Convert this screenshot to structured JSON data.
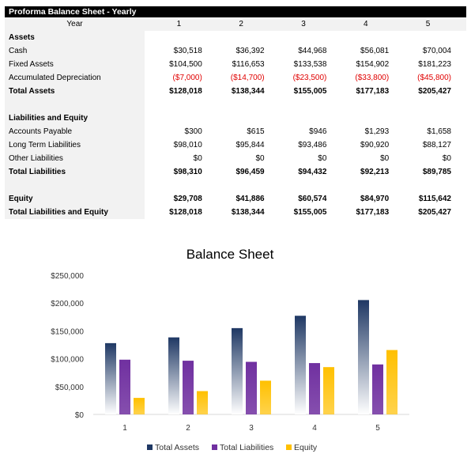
{
  "sheet": {
    "title": "Proforma Balance Sheet - Yearly",
    "header": {
      "label": "Year",
      "years": [
        "1",
        "2",
        "3",
        "4",
        "5"
      ]
    },
    "rows": [
      {
        "label": "Assets",
        "values": [],
        "bold": true
      },
      {
        "label": "Cash",
        "values": [
          "$30,518",
          "$36,392",
          "$44,968",
          "$56,081",
          "$70,004"
        ]
      },
      {
        "label": "Fixed Assets",
        "values": [
          "$104,500",
          "$116,653",
          "$133,538",
          "$154,902",
          "$181,223"
        ]
      },
      {
        "label": "Accumulated Depreciation",
        "values": [
          "($7,000)",
          "($14,700)",
          "($23,500)",
          "($33,800)",
          "($45,800)"
        ],
        "negative": true
      },
      {
        "label": "Total Assets",
        "values": [
          "$128,018",
          "$138,344",
          "$155,005",
          "$177,183",
          "$205,427"
        ],
        "bold": true
      },
      {
        "label": "",
        "values": []
      },
      {
        "label": "Liabilities and Equity",
        "values": [],
        "bold": true
      },
      {
        "label": "Accounts Payable",
        "values": [
          "$300",
          "$615",
          "$946",
          "$1,293",
          "$1,658"
        ]
      },
      {
        "label": "Long Term Liabilities",
        "values": [
          "$98,010",
          "$95,844",
          "$93,486",
          "$90,920",
          "$88,127"
        ]
      },
      {
        "label": "Other Liabilities",
        "values": [
          "$0",
          "$0",
          "$0",
          "$0",
          "$0"
        ]
      },
      {
        "label": "Total Liabilities",
        "values": [
          "$98,310",
          "$96,459",
          "$94,432",
          "$92,213",
          "$89,785"
        ],
        "bold": true
      },
      {
        "label": "",
        "values": []
      },
      {
        "label": "Equity",
        "values": [
          "$29,708",
          "$41,886",
          "$60,574",
          "$84,970",
          "$115,642"
        ],
        "bold": true
      },
      {
        "label": "Total Liabilities and Equity",
        "values": [
          "$128,018",
          "$138,344",
          "$155,005",
          "$177,183",
          "$205,427"
        ],
        "bold": true
      }
    ]
  },
  "chart_data": {
    "type": "bar",
    "title": "Balance Sheet",
    "categories": [
      "1",
      "2",
      "3",
      "4",
      "5"
    ],
    "series": [
      {
        "name": "Total Assets",
        "values": [
          128018,
          138344,
          155005,
          177183,
          205427
        ],
        "color": "#1f3864"
      },
      {
        "name": "Total Liabilities",
        "values": [
          98310,
          96459,
          94432,
          92213,
          89785
        ],
        "color": "#7030a0"
      },
      {
        "name": "Equity",
        "values": [
          29708,
          41886,
          60574,
          84970,
          115642
        ],
        "color": "#ffc000"
      }
    ],
    "y_ticks": [
      "$0",
      "$50,000",
      "$100,000",
      "$150,000",
      "$200,000",
      "$250,000"
    ],
    "ylim": [
      0,
      250000
    ],
    "xlabel": "",
    "ylabel": "",
    "grid": false,
    "legend_position": "bottom"
  }
}
